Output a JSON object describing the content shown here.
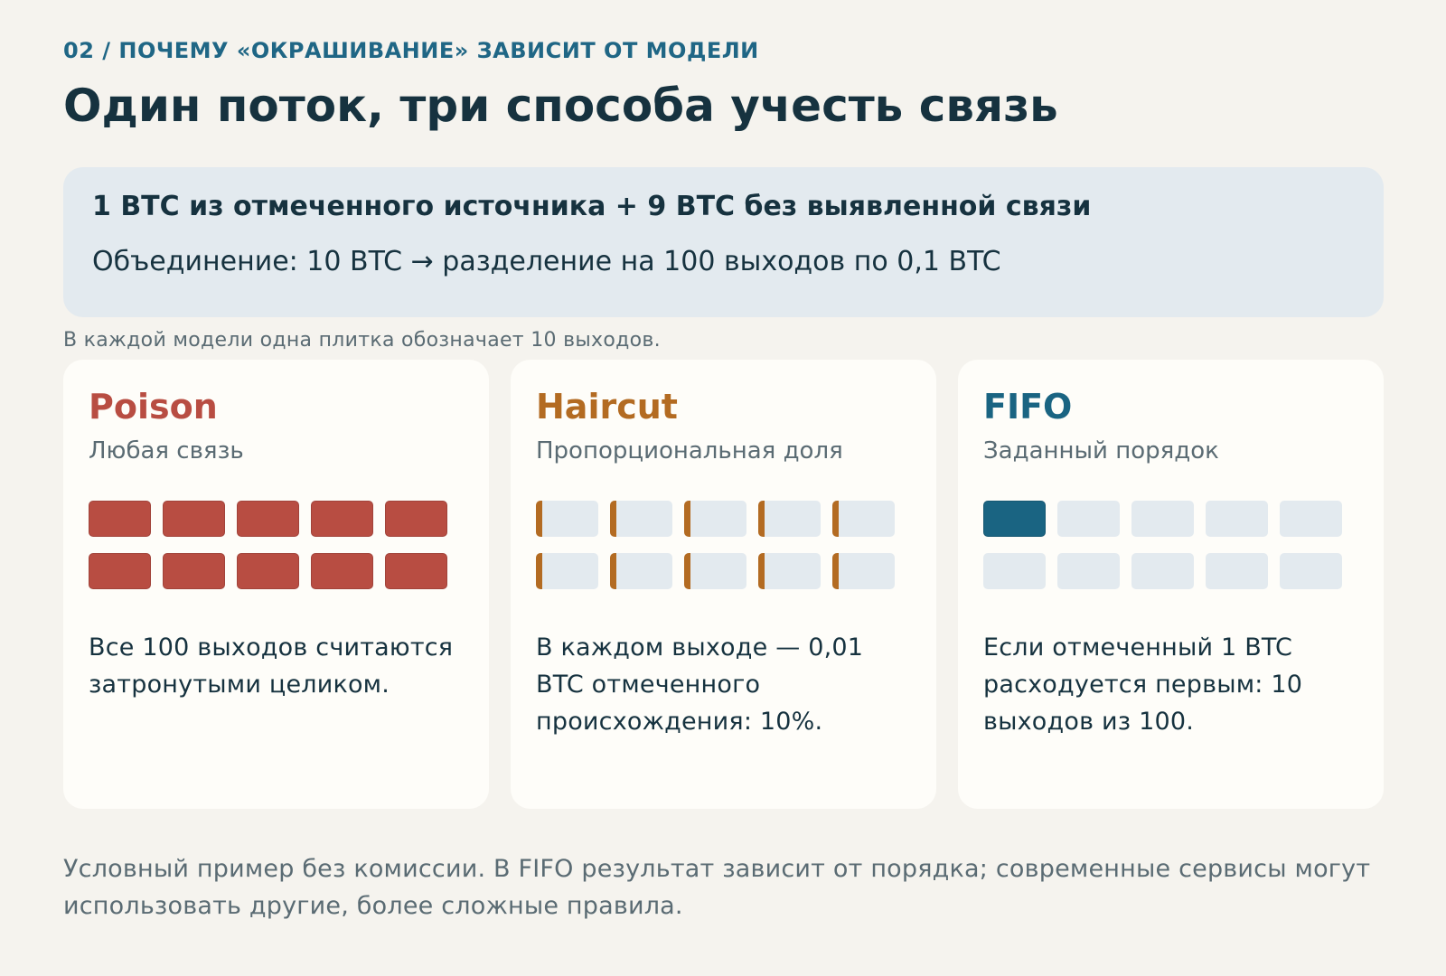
{
  "header": {
    "eyebrow": "02 / ПОЧЕМУ «ОКРАШИВАНИЕ» ЗАВИСИТ ОТ МОДЕЛИ",
    "title": "Один поток, три способа учесть связь"
  },
  "flow": {
    "headline": "1 BTC из отмеченного источника + 9 BTC без выявленной связи",
    "detail": "Объединение: 10 BTC → разделение на 100 выходов по 0,1 BTC"
  },
  "legend_note": "В каждой модели одна плитка обозначает 10 выходов.",
  "models": [
    {
      "name": "Poison",
      "subtitle": "Любая связь",
      "description": "Все 100 выходов считаются затронутыми целиком.",
      "accent_color": "#b84d42",
      "tiles_total": 10,
      "tiles_fully_marked": 10,
      "marked_share_per_tile": 1.0
    },
    {
      "name": "Haircut",
      "subtitle": "Пропорциональная доля",
      "description": "В каждом выходе — 0,01 BTC отмеченного происхождения: 10%.",
      "accent_color": "#b36b22",
      "tiles_total": 10,
      "tiles_fully_marked": 0,
      "marked_share_per_tile": 0.1
    },
    {
      "name": "FIFO",
      "subtitle": "Заданный порядок",
      "description": "Если отмеченный 1 BTC расходуется первым: 10 выходов из 100.",
      "accent_color": "#1a6482",
      "tiles_total": 10,
      "tiles_fully_marked": 1,
      "marked_share_per_tile": 0
    }
  ],
  "footnote": "Условный пример без комиссии. В FIFO результат зависит от порядка; современные сервисы могут использовать другие, более сложные правила."
}
